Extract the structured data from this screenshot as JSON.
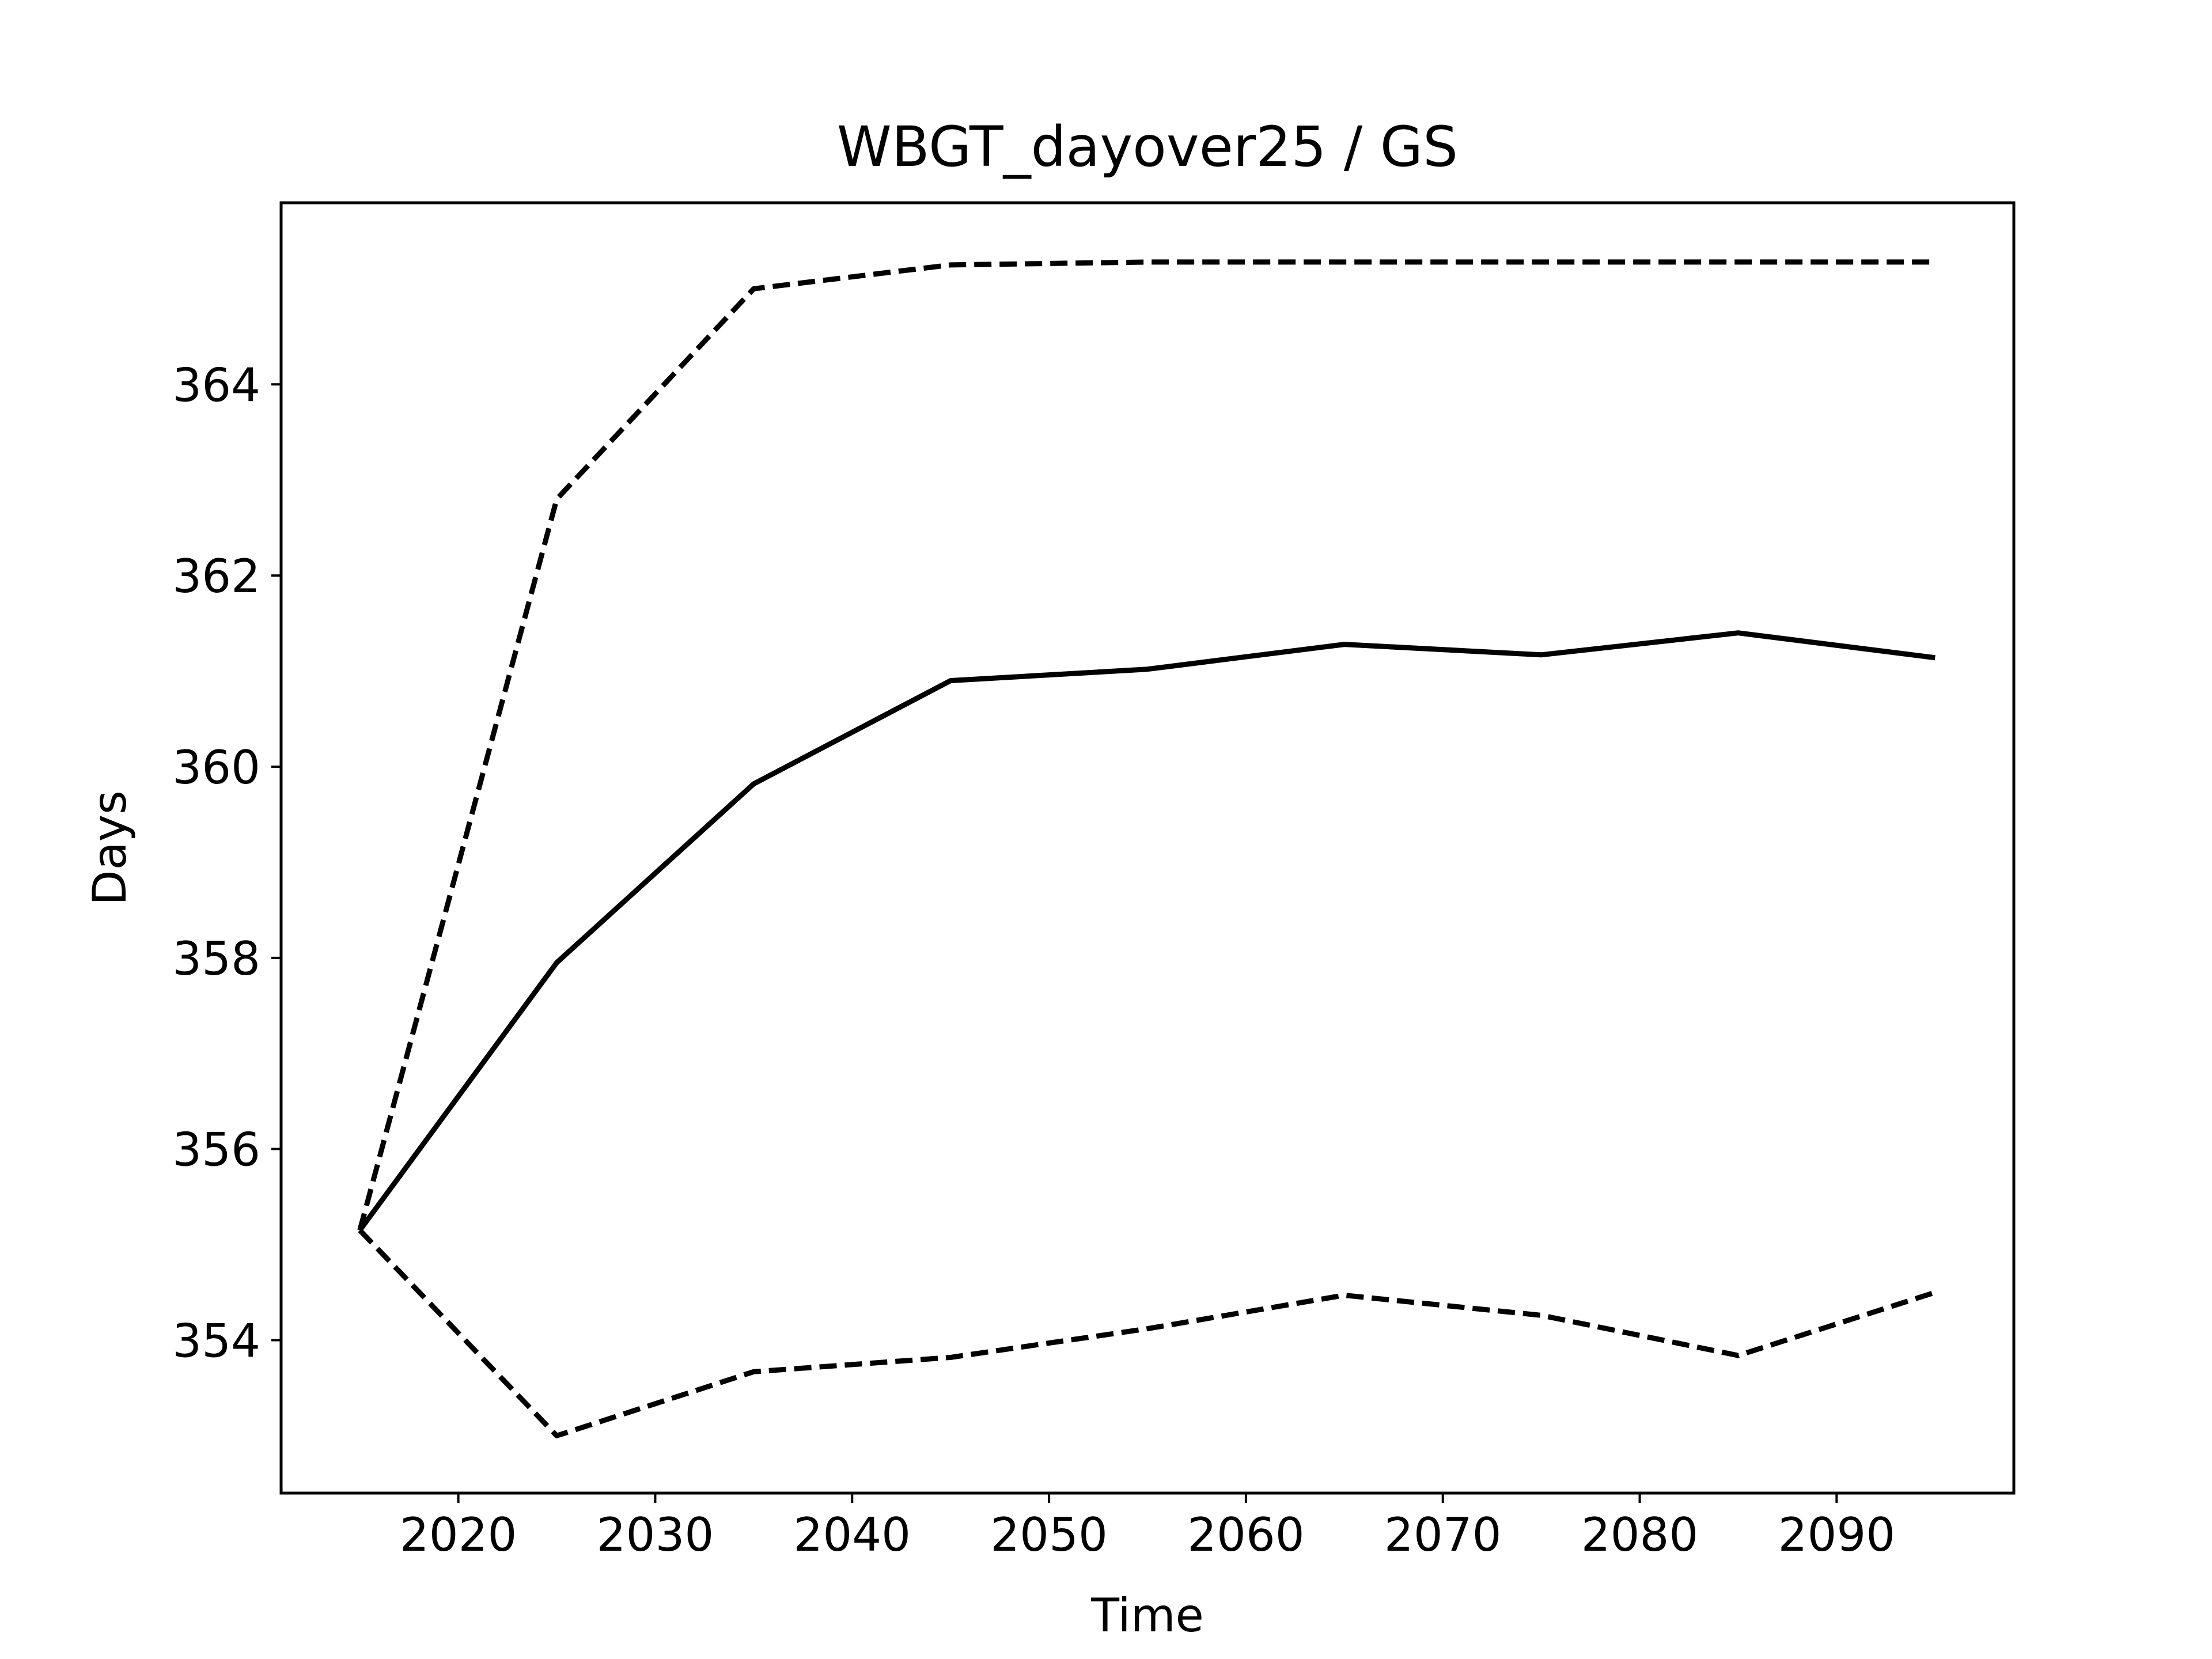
{
  "chart_data": {
    "type": "line",
    "title": "WBGT_dayover25 / GS",
    "xlabel": "Time",
    "ylabel": "Days",
    "xlim": [
      2011,
      2099
    ],
    "ylim": [
      352.4,
      365.9
    ],
    "xticks": [
      2020,
      2030,
      2040,
      2050,
      2060,
      2070,
      2080,
      2090
    ],
    "yticks": [
      354,
      356,
      358,
      360,
      362,
      364
    ],
    "grid": false,
    "x": [
      2015,
      2025,
      2035,
      2045,
      2055,
      2065,
      2075,
      2085,
      2095
    ],
    "series": [
      {
        "key": "upper",
        "style": "dashed",
        "color": "#000000",
        "values": [
          355.15,
          362.8,
          365.0,
          365.25,
          365.28,
          365.28,
          365.28,
          365.28,
          365.28
        ]
      },
      {
        "key": "mean",
        "style": "solid",
        "color": "#000000",
        "values": [
          355.15,
          357.95,
          359.82,
          360.9,
          361.02,
          361.28,
          361.17,
          361.4,
          361.14
        ]
      },
      {
        "key": "lower",
        "style": "dashed",
        "color": "#000000",
        "values": [
          355.15,
          353.0,
          353.67,
          353.82,
          354.12,
          354.47,
          354.26,
          353.84,
          354.5
        ]
      }
    ]
  }
}
